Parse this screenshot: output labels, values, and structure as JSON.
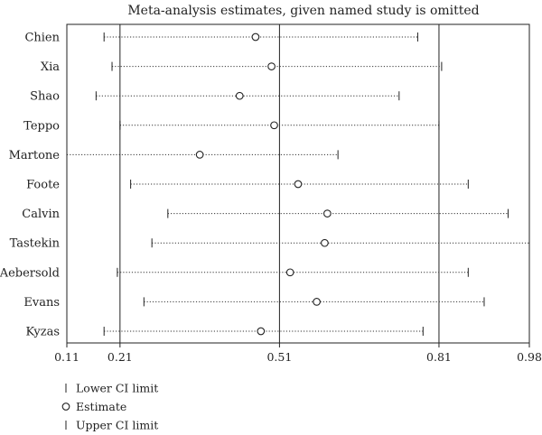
{
  "chart_data": {
    "type": "scatter",
    "title": "Meta-analysis estimates, given named study is omitted",
    "xlabel": "",
    "ylabel": "",
    "xlim": [
      0.11,
      0.98
    ],
    "x_ticks": [
      0.11,
      0.21,
      0.51,
      0.81,
      0.98
    ],
    "x_tick_labels": [
      "0.11",
      "0.21",
      "0.51",
      "0.81",
      "0.98"
    ],
    "reference_lines": [
      0.21,
      0.51,
      0.81
    ],
    "grid": false,
    "legend_position": "bottom-left",
    "studies": [
      {
        "name": "Chien",
        "lower": 0.18,
        "estimate": 0.465,
        "upper": 0.77
      },
      {
        "name": "Xia",
        "lower": 0.195,
        "estimate": 0.495,
        "upper": 0.815
      },
      {
        "name": "Shao",
        "lower": 0.165,
        "estimate": 0.435,
        "upper": 0.735
      },
      {
        "name": "Teppo",
        "lower": 0.21,
        "estimate": 0.5,
        "upper": 0.81
      },
      {
        "name": "Martone",
        "lower": 0.11,
        "estimate": 0.36,
        "upper": 0.62
      },
      {
        "name": "Foote",
        "lower": 0.23,
        "estimate": 0.545,
        "upper": 0.865
      },
      {
        "name": "Calvin",
        "lower": 0.3,
        "estimate": 0.6,
        "upper": 0.94
      },
      {
        "name": "Tastekin",
        "lower": 0.27,
        "estimate": 0.595,
        "upper": 0.98
      },
      {
        "name": "Aebersold",
        "lower": 0.205,
        "estimate": 0.53,
        "upper": 0.865
      },
      {
        "name": "Evans",
        "lower": 0.255,
        "estimate": 0.58,
        "upper": 0.895
      },
      {
        "name": "Kyzas",
        "lower": 0.18,
        "estimate": 0.475,
        "upper": 0.78
      }
    ],
    "legend": [
      {
        "label": "Lower CI limit",
        "symbol": "tick"
      },
      {
        "label": "Estimate",
        "symbol": "circle"
      },
      {
        "label": "Upper CI limit",
        "symbol": "tick"
      }
    ],
    "colors": {
      "axis": "#222222",
      "dotted": "#333333",
      "marker": "#222222"
    }
  }
}
